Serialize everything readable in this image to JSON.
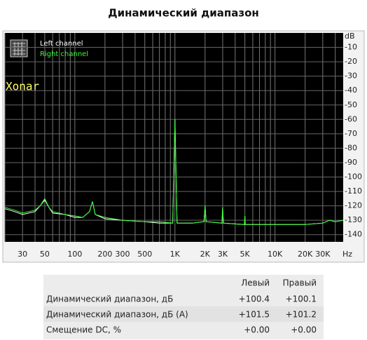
{
  "chart_data": {
    "type": "line",
    "title": "Динамический диапазон",
    "annotation": "Xonar",
    "x_unit": "Hz",
    "y_unit": "dB",
    "log_x": true,
    "grid": true,
    "legend": "top-left",
    "xlim": [
      20,
      48000
    ],
    "ylim": [
      -145,
      0
    ],
    "xticks": [
      30,
      50,
      100,
      200,
      300,
      500,
      {
        "value": 1000,
        "label": "1K"
      },
      {
        "value": 2000,
        "label": "2K"
      },
      {
        "value": 3000,
        "label": "3K"
      },
      {
        "value": 5000,
        "label": "5K"
      },
      {
        "value": 10000,
        "label": "10K"
      },
      {
        "value": 20000,
        "label": "20K"
      },
      {
        "value": 30000,
        "label": "30K"
      }
    ],
    "xminor": [
      20,
      30,
      40,
      50,
      60,
      70,
      80,
      90,
      100,
      200,
      300,
      400,
      500,
      600,
      700,
      800,
      900,
      1000,
      2000,
      3000,
      4000,
      5000,
      6000,
      7000,
      8000,
      9000,
      10000,
      20000,
      30000,
      40000
    ],
    "yticks": [
      -10,
      -20,
      -30,
      -40,
      -50,
      -60,
      -70,
      -80,
      -90,
      -100,
      -110,
      -120,
      -130,
      -140
    ],
    "x": [
      20,
      25,
      30,
      40,
      45,
      50,
      55,
      60,
      80,
      100,
      120,
      140,
      150,
      160,
      200,
      300,
      500,
      700,
      950,
      1000,
      1050,
      1500,
      1950,
      2000,
      2050,
      2950,
      3000,
      3050,
      4950,
      5000,
      5050,
      10000,
      20000,
      30000,
      35000,
      40000,
      48000
    ],
    "series": [
      {
        "name": "Left channel",
        "color": "#ffffff",
        "values": [
          -122,
          -124,
          -126,
          -124,
          -120,
          -116,
          -121,
          -125,
          -126,
          -128,
          -128,
          -124,
          -117,
          -126,
          -129,
          -130,
          -131,
          -132,
          -132,
          -60,
          -132,
          -132,
          -131,
          -120,
          -131,
          -132,
          -121,
          -132,
          -133,
          -127,
          -133,
          -133,
          -133,
          -132,
          -130,
          -131,
          -130
        ]
      },
      {
        "name": "Right channel",
        "color": "#33ff33",
        "values": [
          -121,
          -123,
          -125,
          -123,
          -120,
          -115,
          -121,
          -124,
          -126,
          -127,
          -128,
          -124,
          -117,
          -126,
          -128,
          -130,
          -131,
          -131,
          -132,
          -60,
          -132,
          -132,
          -131,
          -120,
          -131,
          -132,
          -121,
          -132,
          -133,
          -127,
          -133,
          -133,
          -133,
          -132,
          -130,
          -131,
          -130
        ]
      }
    ]
  },
  "table": {
    "columns": [
      "Левый",
      "Правый"
    ],
    "rows": [
      {
        "label": "Динамический диапазон, дБ",
        "cells": [
          "+100.4",
          "+100.1"
        ]
      },
      {
        "label": "Динамический диапазон, дБ (А)",
        "cells": [
          "+101.5",
          "+101.2"
        ]
      },
      {
        "label": "Смещение DC, %",
        "cells": [
          "+0.00",
          "+0.00"
        ]
      }
    ]
  }
}
